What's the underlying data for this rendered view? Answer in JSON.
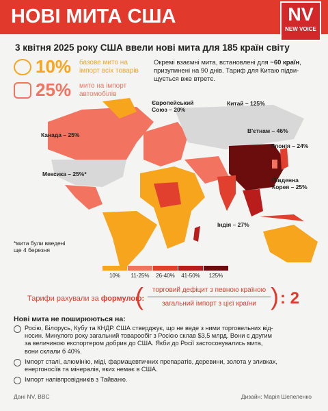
{
  "header": {
    "title": "НОВІ МИТА США",
    "logo": "NV",
    "logo_sub": "NEW VOICE"
  },
  "subtitle": "3 квітня 2025 року США ввели нові мита для 185 країн світу",
  "stats": [
    {
      "value": "10%",
      "lines": [
        "базове мито на",
        "імпорт всіх товарів"
      ]
    },
    {
      "value": "25%",
      "lines": [
        "мито на імпорт",
        "автомобілів"
      ]
    }
  ],
  "note": {
    "line1_start": "Окремі взаємні мита, встановлені для ",
    "line1_bold": "~60 країн",
    "line1_end": ",",
    "line2": "призупинені на 90 днів. Тариф для Китаю підви-",
    "line3": "щується вже втретє."
  },
  "map_labels": [
    {
      "lines": [
        "Канада – 25%"
      ]
    },
    {
      "lines": [
        "Мексика – 25%*"
      ]
    },
    {
      "lines": [
        "Європейський",
        "Союз – 20%"
      ]
    },
    {
      "lines": [
        "Китай – 125%"
      ]
    },
    {
      "lines": [
        "В'єтнам – 46%"
      ]
    },
    {
      "lines": [
        "Японія – 24%"
      ]
    },
    {
      "lines": [
        "Південна",
        "Корея – 25%"
      ]
    },
    {
      "lines": [
        "Індія – 27%"
      ]
    }
  ],
  "footnote": [
    "*мита були введені",
    "ще 4 березня"
  ],
  "legend": [
    {
      "label": "10%",
      "color": "#f6a51c"
    },
    {
      "label": "11-25%",
      "color": "#f2735f"
    },
    {
      "label": "26-40%",
      "color": "#e2402f"
    },
    {
      "label": "41-50%",
      "color": "#b81d1c"
    },
    {
      "label": "125%",
      "color": "#6b0d0d"
    }
  ],
  "formula": {
    "label_start": "Тарифи рахували за ",
    "label_bold": "формулою:",
    "numerator": "торговий дефіцит з певною країною",
    "denominator": "загальний імпорт з цієї країни",
    "divisor": ": 2"
  },
  "exclusions": {
    "heading": "Нові мита не поширюються на:",
    "items": [
      [
        "Росію, Білорусь, Кубу та КНДР. США стверджує, що не веде з ними торговельних від-",
        "носин. Минулого року загальний товарообіг з Росією склав $3,5 млрд. Вони є другим",
        "за величиною експортером добрив до США. Якби до Росії застосовувались мита,",
        "вони склали б 40%."
      ],
      [
        "Імпорт сталі, алюмінію, міді, фармацевтичних препаратів, деревини, золота у зливках,",
        "енергоносіїв та мінералів, яких немає в США."
      ],
      [
        "Імпорт напівпровідників з Тайваню."
      ]
    ]
  },
  "footer": {
    "source": "Дані NV, BBC",
    "design": "Дизайн: Марія Шепеленко"
  }
}
